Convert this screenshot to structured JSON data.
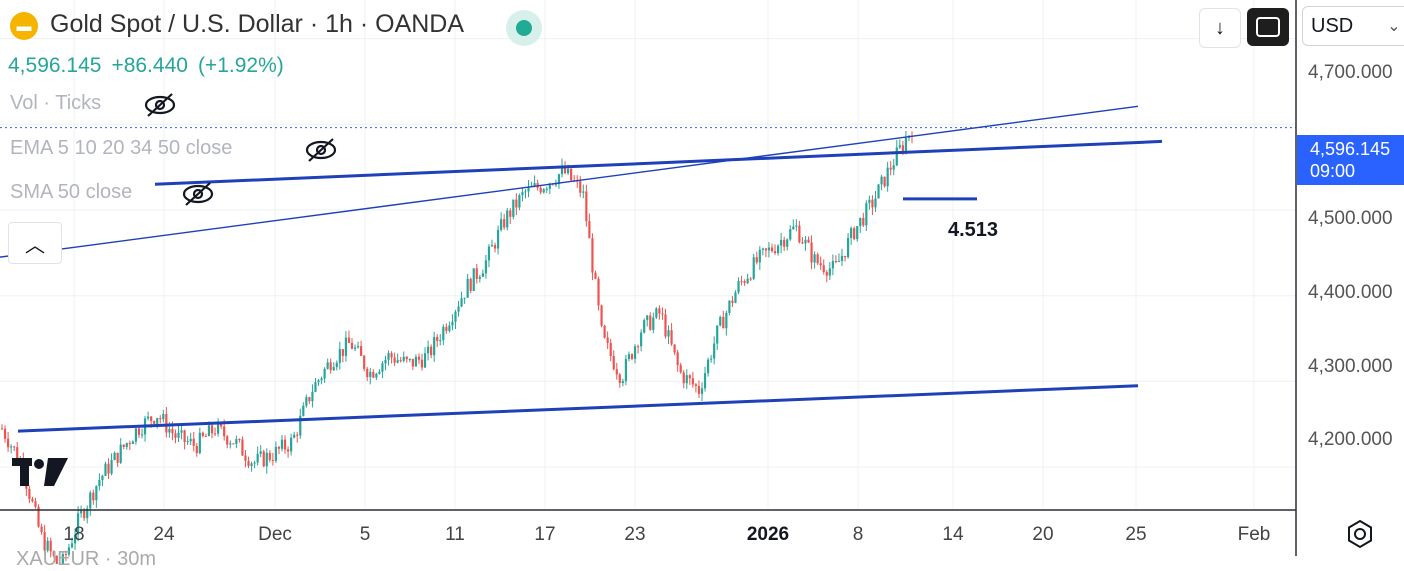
{
  "header": {
    "title": "Gold Spot / U.S. Dollar · 1h · OANDA",
    "logo_glyph": "▬",
    "status_color": "#22ab94"
  },
  "price": {
    "last": "4,596.145",
    "change": "+86.440",
    "change_pct": "(+1.92%)",
    "color": "#26a69a"
  },
  "indicators": [
    {
      "label": "Vol · Ticks",
      "icon": "eye-off-icon"
    },
    {
      "label": "EMA 5 10 20 34 50 close",
      "icon": "eye-off-icon"
    },
    {
      "label": "SMA 50 close",
      "icon": "eye-off-icon"
    }
  ],
  "toolbar": {
    "collapse_glyph": "︿",
    "download_glyph": "↓",
    "fullscreen_icon": "fullscreen-icon"
  },
  "currency": {
    "label": "USD",
    "chevron": "⌄"
  },
  "price_axis": {
    "ticks": [
      "4,700.000",
      "4,596.145",
      "4,500.000",
      "4,400.000",
      "4,300.000",
      "4,200.000"
    ],
    "current_price": "4,596.145",
    "countdown": "09:00"
  },
  "time_axis": {
    "ticks": [
      "18",
      "24",
      "Dec",
      "5",
      "11",
      "17",
      "23",
      "2026",
      "8",
      "14",
      "20",
      "25",
      "Feb"
    ]
  },
  "annotation": {
    "text": "4.513"
  },
  "footer": {
    "cut_text": "XAUEUR · 30m"
  },
  "chart_data": {
    "type": "line",
    "title": "Gold Spot / U.S. Dollar · 1h · OANDA",
    "instrument": "XAUUSD",
    "ylim": [
      4150,
      4745
    ],
    "y_ticks": [
      4200,
      4300,
      4400,
      4500,
      4600,
      4700
    ],
    "x_ticks": [
      "18",
      "24",
      "Dec",
      "5",
      "11",
      "17",
      "23",
      "2026",
      "8",
      "14",
      "20",
      "25",
      "Feb"
    ],
    "series": [
      {
        "values": [
          4245,
          4205,
          4120,
          4080,
          4140,
          4185,
          4215,
          4245,
          4262,
          4235,
          4225,
          4245,
          4230,
          4205,
          4215,
          4230,
          4290,
          4325,
          4345,
          4310,
          4330,
          4320,
          4330,
          4370,
          4410,
          4440,
          4490,
          4520,
          4530,
          4545,
          4520,
          4350,
          4305,
          4360,
          4380,
          4310,
          4290,
          4360,
          4410,
          4440,
          4460,
          4480,
          4440,
          4430,
          4475,
          4510,
          4555,
          4596
        ]
      }
    ],
    "drawings": [
      {
        "kind": "trendline",
        "from": [
          "Nov 14",
          4242
        ],
        "to": [
          "Jan 26",
          4295
        ]
      },
      {
        "kind": "trendline",
        "from": [
          "Nov 20",
          4530
        ],
        "to": [
          "Jan 27",
          4580
        ]
      },
      {
        "kind": "trendline",
        "from": [
          "Nov 13",
          4445
        ],
        "to": [
          "Jan 25",
          4621
        ]
      },
      {
        "kind": "horizontal_ray",
        "price": 4513,
        "label": "4.513"
      }
    ],
    "current_price": 4596.145,
    "grid": true,
    "colors": {
      "up": "#26a69a",
      "down": "#ef5350",
      "lines": "#1e40b8",
      "last_price": "#2962ff"
    }
  }
}
